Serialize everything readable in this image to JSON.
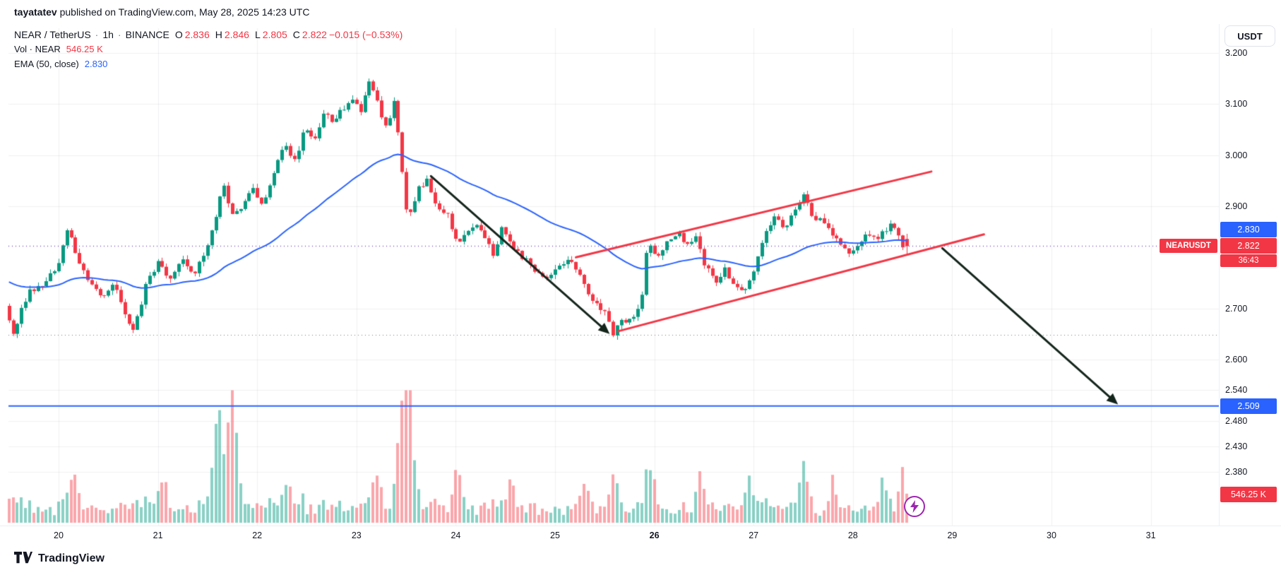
{
  "header": {
    "publisher": "tayatatev",
    "published_text": " published on TradingView.com, May 28, 2025 14:23 UTC"
  },
  "toolbar": {
    "currency_button": "USDT"
  },
  "legend": {
    "symbol": "NEAR / TetherUS",
    "interval": "1h",
    "exchange": "BINANCE",
    "sep": "·",
    "ohlc": {
      "o_label": "O",
      "o": "2.836",
      "h_label": "H",
      "h": "2.846",
      "l_label": "L",
      "l": "2.805",
      "c_label": "C",
      "c": "2.822",
      "change": "−0.015 (−0.53%)"
    },
    "volume_row": {
      "label": "Vol · NEAR",
      "value": "546.25 K"
    },
    "ema_row": {
      "label": "EMA (50, close)",
      "value": "2.830"
    }
  },
  "price_scale": {
    "ticks": [
      "3.200",
      "3.100",
      "3.000",
      "2.900",
      "2.700",
      "2.600",
      "2.540",
      "2.480",
      "2.430",
      "2.380"
    ],
    "tick_values": [
      3.2,
      3.1,
      3.0,
      2.9,
      2.7,
      2.6,
      2.54,
      2.48,
      2.43,
      2.38
    ],
    "ema_badge": "2.830",
    "last_price_badge": "2.822",
    "countdown_badge": "36:43",
    "support_badge": "2.509",
    "volume_badge": "546.25 K",
    "symbol_label": "NEARUSDT"
  },
  "time_scale": {
    "ticks": [
      "20",
      "21",
      "22",
      "23",
      "24",
      "25",
      "26",
      "27",
      "28",
      "29",
      "30",
      "31"
    ],
    "tick_values": [
      20,
      21,
      22,
      23,
      24,
      25,
      26,
      27,
      28,
      29,
      30,
      31
    ],
    "bold_tick": "26"
  },
  "footer": {
    "brand": "TradingView"
  },
  "colors": {
    "up": "#089981",
    "down": "#f23645",
    "vol_up": "rgba(42,172,150,0.55)",
    "vol_down": "rgba(247,106,116,0.6)",
    "ema": "#2962ff",
    "support_line": "#2962ff",
    "last_price_line": "#7e57c2",
    "dotted_level": "#787b86",
    "channel": "#f23645",
    "arrow": "#13241b",
    "grid": "rgba(42,46,57,0.07)"
  },
  "chart_data": {
    "type": "candlestick",
    "symbol": "NEARUSDT",
    "exchange": "BINANCE",
    "interval": "1h",
    "x_axis_days_may_2025": [
      20,
      21,
      22,
      23,
      24,
      25,
      26,
      27,
      28,
      29,
      30,
      31
    ],
    "x_range": [
      19.45,
      31.68
    ],
    "y_range": [
      2.275,
      3.249
    ],
    "price_tick_labels": [
      3.2,
      3.1,
      3.0,
      2.9,
      2.7,
      2.6,
      2.54,
      2.48,
      2.43,
      2.38
    ],
    "grid": true,
    "candles": {
      "start_day": 19.5,
      "end_day": 28.55,
      "step_hours": 1
    },
    "last_candle": {
      "o": 2.836,
      "h": 2.846,
      "l": 2.805,
      "c": 2.822,
      "change": -0.015,
      "change_pct": -0.53
    },
    "ema": {
      "period": 50,
      "source": "close",
      "last_value": 2.83,
      "seed": 2.755
    },
    "volume": {
      "last_value_display": "546.25 K"
    },
    "levels": {
      "last_price": 2.822,
      "ema_value": 2.83,
      "support": 2.509,
      "swing_low_dotted": 2.648
    },
    "price_path": [
      [
        19.5,
        2.705
      ],
      [
        19.58,
        2.655
      ],
      [
        19.75,
        2.735
      ],
      [
        19.9,
        2.745
      ],
      [
        20.05,
        2.795
      ],
      [
        20.13,
        2.86
      ],
      [
        20.22,
        2.8
      ],
      [
        20.35,
        2.755
      ],
      [
        20.5,
        2.72
      ],
      [
        20.6,
        2.755
      ],
      [
        20.72,
        2.685
      ],
      [
        20.8,
        2.66
      ],
      [
        20.92,
        2.745
      ],
      [
        21.05,
        2.79
      ],
      [
        21.15,
        2.755
      ],
      [
        21.3,
        2.795
      ],
      [
        21.4,
        2.77
      ],
      [
        21.5,
        2.8
      ],
      [
        21.62,
        2.875
      ],
      [
        21.7,
        2.945
      ],
      [
        21.78,
        2.88
      ],
      [
        21.9,
        2.905
      ],
      [
        22.0,
        2.93
      ],
      [
        22.1,
        2.895
      ],
      [
        22.22,
        2.975
      ],
      [
        22.33,
        3.02
      ],
      [
        22.42,
        2.985
      ],
      [
        22.52,
        3.055
      ],
      [
        22.62,
        3.03
      ],
      [
        22.72,
        3.095
      ],
      [
        22.8,
        3.06
      ],
      [
        22.9,
        3.09
      ],
      [
        23.0,
        3.115
      ],
      [
        23.08,
        3.085
      ],
      [
        23.18,
        3.15
      ],
      [
        23.27,
        3.09
      ],
      [
        23.35,
        3.045
      ],
      [
        23.42,
        3.115
      ],
      [
        23.48,
        3.0
      ],
      [
        23.55,
        2.875
      ],
      [
        23.65,
        2.93
      ],
      [
        23.75,
        2.95
      ],
      [
        23.85,
        2.9
      ],
      [
        23.95,
        2.885
      ],
      [
        24.05,
        2.825
      ],
      [
        24.18,
        2.86
      ],
      [
        24.3,
        2.855
      ],
      [
        24.42,
        2.8
      ],
      [
        24.5,
        2.855
      ],
      [
        24.6,
        2.82
      ],
      [
        24.72,
        2.8
      ],
      [
        24.85,
        2.775
      ],
      [
        24.95,
        2.755
      ],
      [
        25.05,
        2.775
      ],
      [
        25.15,
        2.795
      ],
      [
        25.25,
        2.78
      ],
      [
        25.35,
        2.735
      ],
      [
        25.45,
        2.71
      ],
      [
        25.55,
        2.695
      ],
      [
        25.62,
        2.652
      ],
      [
        25.7,
        2.672
      ],
      [
        25.8,
        2.675
      ],
      [
        25.9,
        2.7
      ],
      [
        25.97,
        2.825
      ],
      [
        26.07,
        2.8
      ],
      [
        26.17,
        2.83
      ],
      [
        26.27,
        2.85
      ],
      [
        26.37,
        2.82
      ],
      [
        26.45,
        2.84
      ],
      [
        26.55,
        2.785
      ],
      [
        26.65,
        2.75
      ],
      [
        26.75,
        2.775
      ],
      [
        26.85,
        2.75
      ],
      [
        26.95,
        2.73
      ],
      [
        27.05,
        2.78
      ],
      [
        27.15,
        2.845
      ],
      [
        27.25,
        2.88
      ],
      [
        27.35,
        2.86
      ],
      [
        27.45,
        2.89
      ],
      [
        27.55,
        2.925
      ],
      [
        27.63,
        2.88
      ],
      [
        27.72,
        2.87
      ],
      [
        27.82,
        2.845
      ],
      [
        27.92,
        2.825
      ],
      [
        28.0,
        2.805
      ],
      [
        28.1,
        2.825
      ],
      [
        28.2,
        2.845
      ],
      [
        28.3,
        2.835
      ],
      [
        28.4,
        2.865
      ],
      [
        28.48,
        2.855
      ],
      [
        28.55,
        2.822
      ]
    ],
    "volume_spikes": [
      [
        20.15,
        0.3
      ],
      [
        21.05,
        0.28
      ],
      [
        21.58,
        0.45
      ],
      [
        21.63,
        0.6
      ],
      [
        21.74,
        1.0
      ],
      [
        21.8,
        0.4
      ],
      [
        22.3,
        0.25
      ],
      [
        23.2,
        0.32
      ],
      [
        23.42,
        0.35
      ],
      [
        23.5,
        1.1
      ],
      [
        23.55,
        0.6
      ],
      [
        24.02,
        0.35
      ],
      [
        24.55,
        0.25
      ],
      [
        25.3,
        0.25
      ],
      [
        25.6,
        0.3
      ],
      [
        25.97,
        0.4
      ],
      [
        26.45,
        0.28
      ],
      [
        26.95,
        0.3
      ],
      [
        27.5,
        0.42
      ],
      [
        27.8,
        0.3
      ],
      [
        28.3,
        0.28
      ],
      [
        28.5,
        0.3
      ]
    ],
    "annotations": {
      "channel": {
        "upper": [
          [
            25.21,
            2.8
          ],
          [
            28.79,
            2.968
          ]
        ],
        "lower": [
          [
            25.63,
            2.655
          ],
          [
            29.32,
            2.845
          ]
        ]
      },
      "arrows": [
        {
          "from": [
            23.75,
            2.959
          ],
          "to": [
            25.55,
            2.65
          ]
        },
        {
          "from": [
            28.9,
            2.818
          ],
          "to": [
            30.67,
            2.512
          ]
        }
      ],
      "support_line_price": 2.509,
      "lightning_marker_day": 28.62
    }
  }
}
